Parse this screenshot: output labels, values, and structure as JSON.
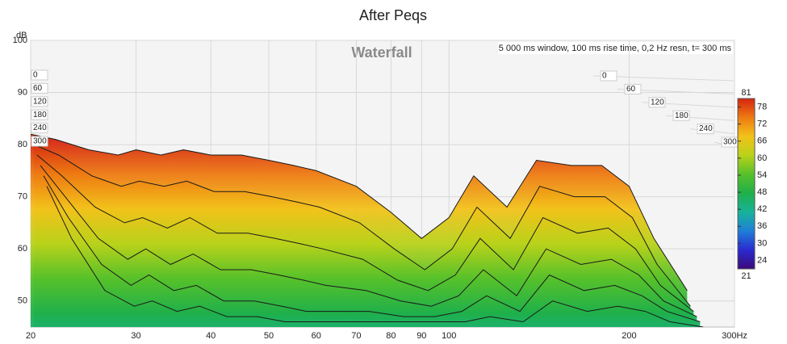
{
  "chart_data": {
    "type": "waterfall",
    "title": "After Peqs",
    "y_label": "dB",
    "watermark": "Waterfall",
    "info": "5 000 ms window, 100 ms rise time,  0,2 Hz resn, t= 300 ms",
    "x_log": true,
    "xlim": [
      20,
      300
    ],
    "xticks": [
      20,
      30,
      40,
      50,
      60,
      70,
      80,
      90,
      100,
      200,
      {
        "value": 300,
        "label": "300Hz"
      }
    ],
    "ylim": [
      45,
      100
    ],
    "yticks": [
      50,
      60,
      70,
      80,
      90,
      100
    ],
    "zlim": [
      0,
      300
    ],
    "zticks": [
      0,
      60,
      120,
      180,
      240,
      300
    ],
    "clim": [
      21,
      81
    ],
    "cticks": [
      24,
      30,
      36,
      42,
      48,
      54,
      60,
      66,
      72,
      78
    ],
    "colormap": [
      "#3c0a7a",
      "#2a2ad0",
      "#1f7fd8",
      "#17b39a",
      "#1fb04a",
      "#57c12a",
      "#b9d21a",
      "#f2c21a",
      "#ee7a12",
      "#d42410"
    ],
    "grid": true,
    "x": [
      20,
      22,
      25,
      28,
      30,
      33,
      36,
      40,
      45,
      50,
      55,
      60,
      70,
      80,
      90,
      100,
      110,
      125,
      140,
      160,
      180,
      200,
      220,
      250
    ],
    "series": [
      {
        "name": "0",
        "values": [
          82,
          81,
          79,
          78,
          79,
          78,
          79,
          78,
          78,
          77,
          76,
          75,
          72,
          67,
          62,
          66,
          74,
          68,
          77,
          76,
          76,
          72,
          62,
          52
        ]
      },
      {
        "name": "60",
        "values": [
          80,
          78,
          74,
          72,
          73,
          72,
          73,
          71,
          71,
          70,
          69,
          68,
          65,
          60,
          56,
          60,
          68,
          62,
          72,
          70,
          70,
          66,
          57,
          49
        ]
      },
      {
        "name": "120",
        "values": [
          78,
          74,
          68,
          65,
          66,
          64,
          66,
          63,
          63,
          62,
          61,
          60,
          58,
          54,
          52,
          55,
          62,
          56,
          66,
          63,
          64,
          60,
          53,
          48
        ]
      },
      {
        "name": "180",
        "values": [
          76,
          70,
          62,
          58,
          60,
          57,
          59,
          56,
          56,
          55,
          54,
          53,
          52,
          50,
          49,
          51,
          56,
          51,
          60,
          57,
          58,
          55,
          50,
          47
        ]
      },
      {
        "name": "240",
        "values": [
          74,
          66,
          57,
          53,
          55,
          52,
          53,
          50,
          50,
          49,
          48,
          48,
          48,
          47,
          47,
          48,
          51,
          48,
          55,
          52,
          53,
          51,
          48,
          46
        ]
      },
      {
        "name": "300",
        "values": [
          72,
          62,
          52,
          49,
          50,
          48,
          49,
          47,
          47,
          46,
          46,
          46,
          46,
          46,
          46,
          46,
          47,
          46,
          50,
          48,
          49,
          48,
          46,
          45
        ]
      }
    ]
  }
}
